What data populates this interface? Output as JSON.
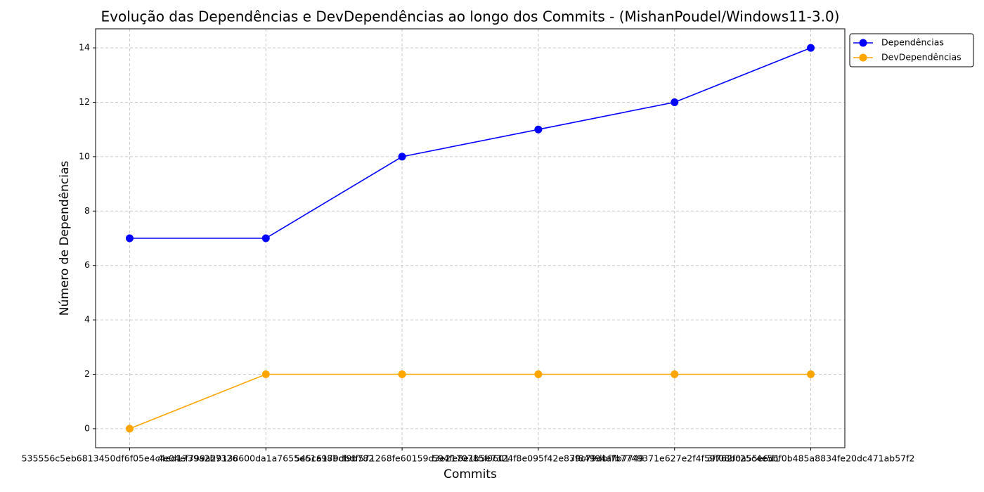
{
  "chart_data": {
    "type": "line",
    "title": "Evolução das Dependências e DevDependências ao longo dos Commits - (MishanPoudel/Windows11-3.0)",
    "x_label": "Commits",
    "y_label": "Número de Dependências",
    "categories": [
      "535556c5eb6813450df6f05e4c4ed1739a2b7326",
      "4e04ef799a29138600da1a7655e61a98bcf9b782",
      "545c6179dbdf571268fe60159d3e2170785f0601",
      "594fe8e1b5e7324f8e095f42e839c79dbf7b7749",
      "7f84994afb7749371e627e2f4f59f08b0a55e6d1",
      "3f762fc25c4e5bf0b485a8834fe20dc471ab57f2"
    ],
    "series": [
      {
        "name": "Dependências",
        "color": "#0000ff",
        "values": [
          7,
          7,
          10,
          11,
          12,
          14
        ]
      },
      {
        "name": "DevDependências",
        "color": "#ffa500",
        "values": [
          0,
          2,
          2,
          2,
          2,
          2
        ]
      }
    ],
    "ylim": [
      -0.7,
      14.7
    ],
    "yticks": [
      0,
      2,
      4,
      6,
      8,
      10,
      12,
      14
    ],
    "grid": true
  }
}
